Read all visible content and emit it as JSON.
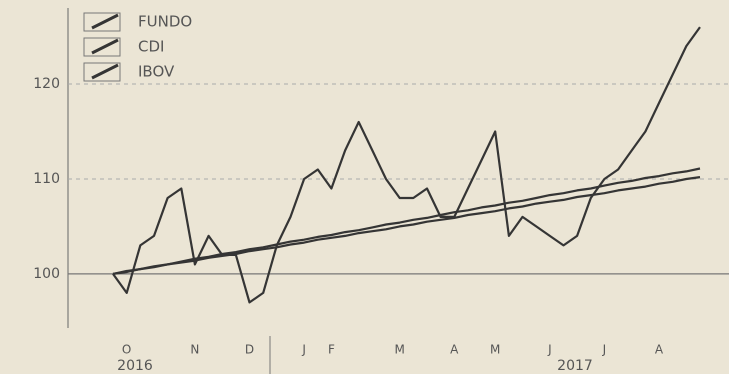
{
  "chart_data": {
    "type": "line",
    "categories": [
      null,
      "O",
      null,
      null,
      null,
      null,
      "N",
      null,
      null,
      null,
      "D",
      null,
      null,
      null,
      "J",
      null,
      "F",
      null,
      null,
      null,
      null,
      "M",
      null,
      null,
      null,
      "A",
      null,
      null,
      "M",
      null,
      null,
      null,
      "J",
      null,
      null,
      null,
      "J",
      null,
      null,
      null,
      "A",
      null,
      null,
      null
    ],
    "years": [
      "2016",
      "2017"
    ],
    "series": [
      {
        "name": "FUNDO",
        "color": "#353535",
        "values": [
          100,
          98,
          103,
          104,
          108,
          109,
          101,
          104,
          102,
          102,
          97,
          98,
          103,
          106,
          110,
          111,
          109,
          113,
          116,
          113,
          110,
          108,
          108,
          109,
          106,
          106,
          109,
          112,
          115,
          104,
          106,
          105,
          104,
          103,
          104,
          108,
          110,
          111,
          113,
          115,
          118,
          121,
          124,
          126
        ]
      },
      {
        "name": "CDI",
        "color": "#353535",
        "values": [
          100.0,
          100.3,
          100.5,
          100.8,
          101.0,
          101.3,
          101.6,
          101.8,
          102.1,
          102.3,
          102.6,
          102.8,
          103.1,
          103.4,
          103.6,
          103.9,
          104.1,
          104.4,
          104.6,
          104.9,
          105.2,
          105.4,
          105.7,
          105.9,
          106.2,
          106.5,
          106.7,
          107.0,
          107.2,
          107.5,
          107.7,
          108.0,
          108.3,
          108.5,
          108.8,
          109.0,
          109.3,
          109.6,
          109.8,
          110.1,
          110.3,
          110.6,
          110.8,
          111.1
        ]
      },
      {
        "name": "IBOV",
        "color": "#353535",
        "values": [
          100.0,
          100.2,
          100.5,
          100.7,
          101.0,
          101.2,
          101.4,
          101.7,
          101.9,
          102.1,
          102.4,
          102.6,
          102.8,
          103.1,
          103.3,
          103.6,
          103.8,
          104.0,
          104.3,
          104.5,
          104.7,
          105.0,
          105.2,
          105.5,
          105.7,
          105.9,
          106.2,
          106.4,
          106.6,
          106.9,
          107.1,
          107.4,
          107.6,
          107.8,
          108.1,
          108.3,
          108.5,
          108.8,
          109.0,
          109.2,
          109.5,
          109.7,
          110.0,
          110.2
        ]
      }
    ],
    "ylim": [
      94.3,
      127.8
    ],
    "yticks": [
      100,
      110,
      120
    ],
    "grid": true,
    "legend": "top-left"
  }
}
